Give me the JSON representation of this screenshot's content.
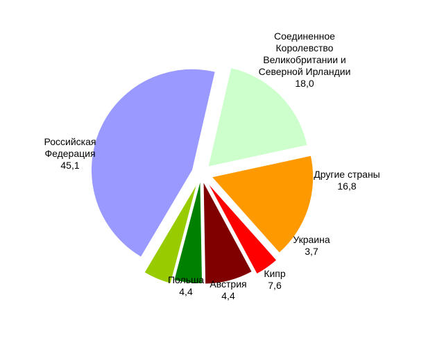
{
  "chart_data": {
    "type": "pie",
    "title": "",
    "start_angle_deg": 13,
    "direction": "clockwise",
    "slices": [
      {
        "label_lines": [
          "Соединенное",
          "Королевство",
          "Великобритании и",
          "Северной Ирландии"
        ],
        "value": 18.0,
        "value_text": "18,0",
        "color": "#ccffcc"
      },
      {
        "label_lines": [
          "Другие страны"
        ],
        "value": 16.8,
        "value_text": "16,8",
        "color": "#ff9900"
      },
      {
        "label_lines": [
          "Украина"
        ],
        "value": 3.7,
        "value_text": "3,7",
        "color": "#ff0000"
      },
      {
        "label_lines": [
          "Кипр"
        ],
        "value": 7.6,
        "value_text": "7,6",
        "color": "#800000"
      },
      {
        "label_lines": [
          "Австрия"
        ],
        "value": 4.4,
        "value_text": "4,4",
        "color": "#008000"
      },
      {
        "label_lines": [
          "Польша"
        ],
        "value": 4.4,
        "value_text": "4,4",
        "color": "#99cc00"
      },
      {
        "label_lines": [
          "Российская",
          "Федерация"
        ],
        "value": 45.1,
        "value_text": "45,1",
        "color": "#9999ff"
      }
    ]
  }
}
